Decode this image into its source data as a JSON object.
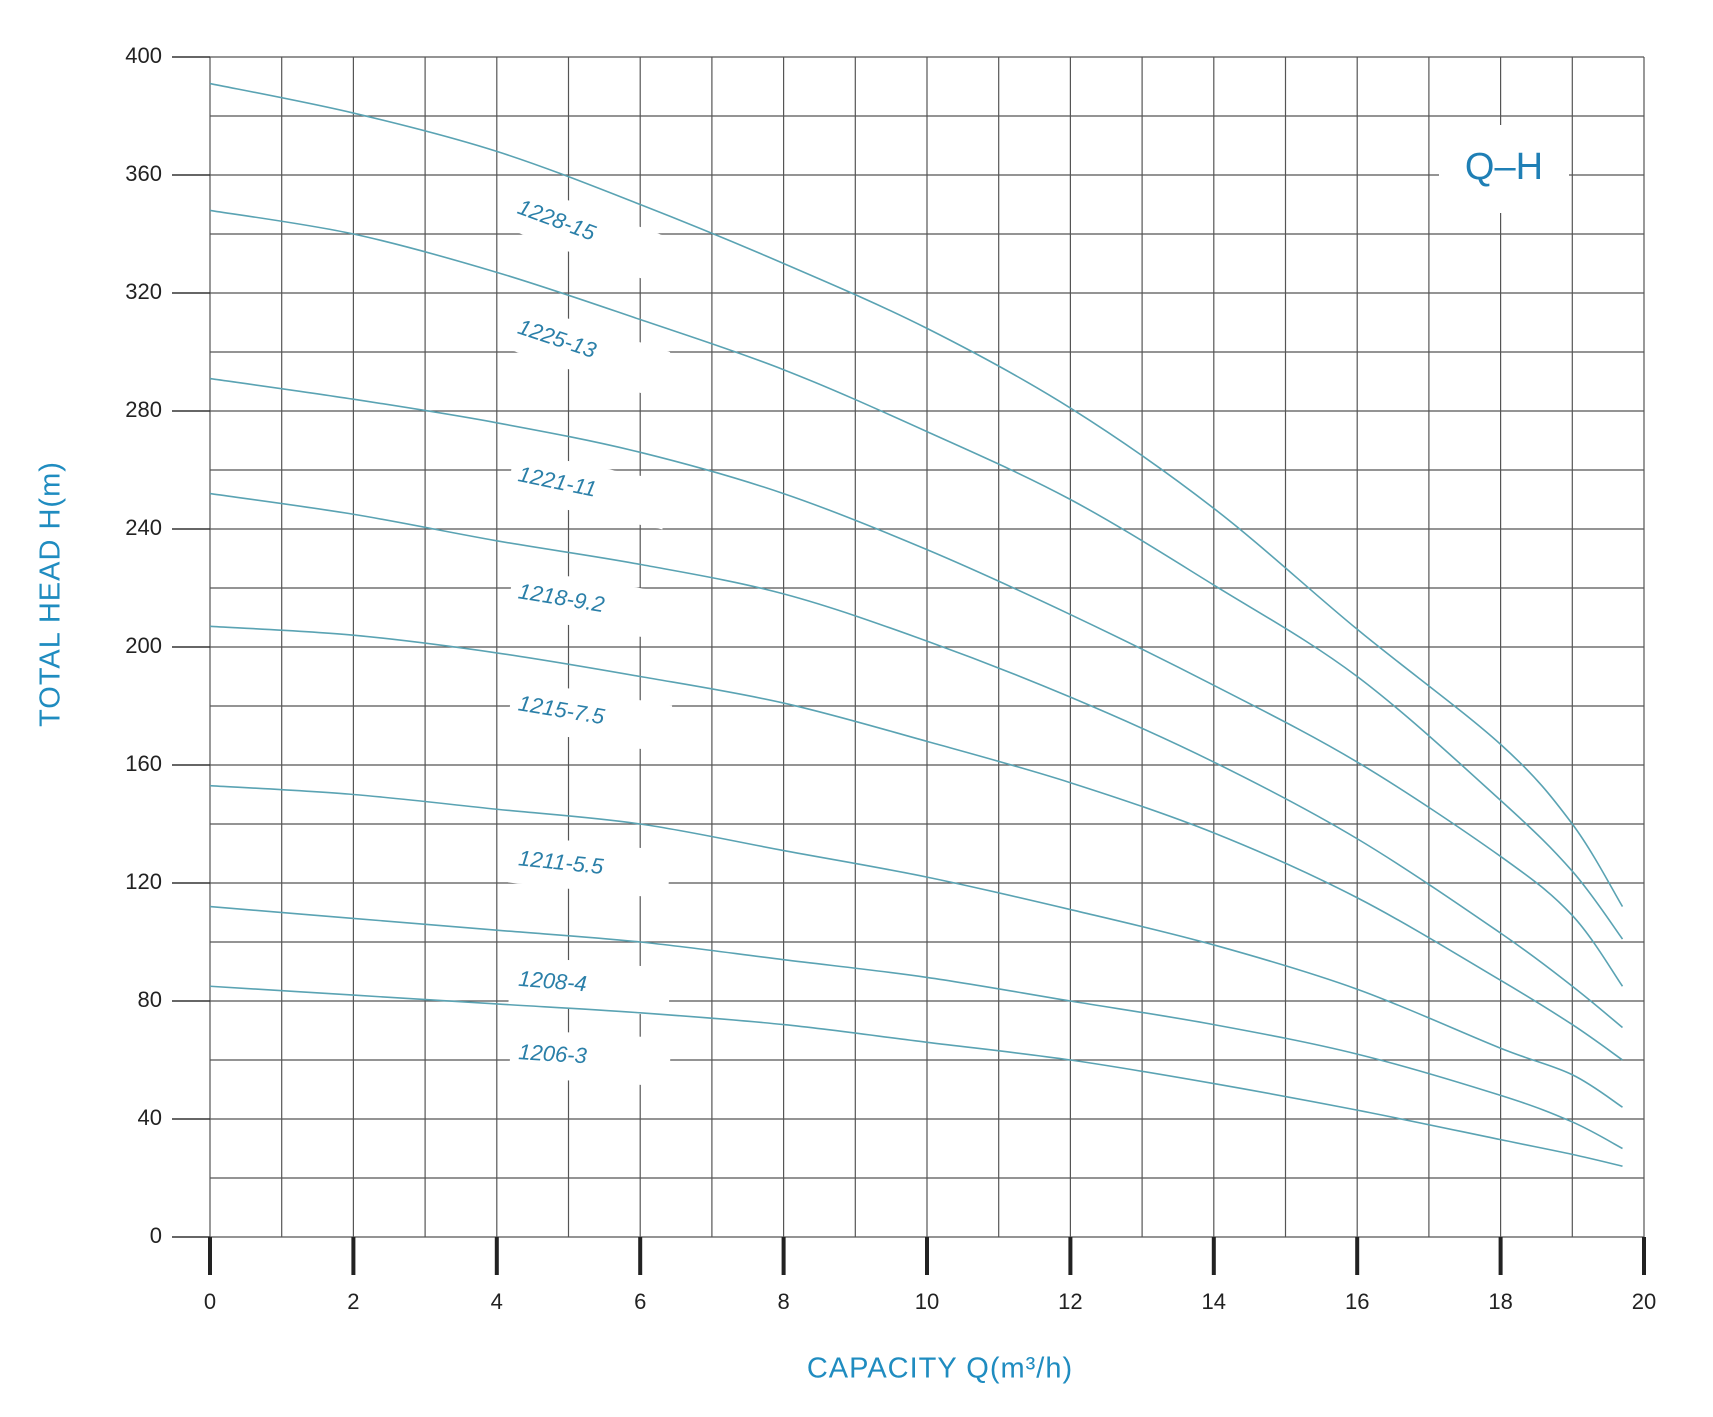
{
  "chart_data": {
    "type": "line",
    "title": "Q–H",
    "x_label": "CAPACITY Q(m³/h)",
    "y_label": "TOTAL HEAD H(m)",
    "x": [
      0,
      2,
      4,
      6,
      8,
      10,
      12,
      14,
      16,
      18,
      19,
      19.7
    ],
    "series": [
      {
        "name": "1228-15",
        "color": "#5aa3b3",
        "values": [
          391,
          381,
          368,
          350,
          330,
          308,
          281,
          247,
          206,
          167,
          140,
          112
        ]
      },
      {
        "name": "1225-13",
        "color": "#5aa3b3",
        "values": [
          348,
          340,
          327,
          311,
          294,
          273,
          250,
          221,
          190,
          148,
          124,
          101
        ]
      },
      {
        "name": "1221-11",
        "color": "#5aa3b3",
        "values": [
          291,
          284,
          276,
          266,
          252,
          233,
          211,
          187,
          161,
          129,
          109,
          85
        ]
      },
      {
        "name": "1218-9.2",
        "color": "#5aa3b3",
        "values": [
          252,
          245,
          236,
          228,
          218,
          202,
          183,
          161,
          135,
          103,
          85,
          71
        ]
      },
      {
        "name": "1215-7.5",
        "color": "#5aa3b3",
        "values": [
          207,
          204,
          198,
          190,
          181,
          168,
          154,
          137,
          115,
          87,
          72,
          60
        ]
      },
      {
        "name": "1211-5.5",
        "color": "#5aa3b3",
        "values": [
          153,
          150,
          145,
          140,
          131,
          122,
          111,
          99,
          84,
          64,
          55,
          44
        ]
      },
      {
        "name": "1208-4",
        "color": "#5aa3b3",
        "values": [
          112,
          108,
          104,
          100,
          94,
          88,
          80,
          72,
          62,
          48,
          39,
          30
        ]
      },
      {
        "name": "1206-3",
        "color": "#5aa3b3",
        "values": [
          85,
          82,
          79,
          76,
          72,
          66,
          60,
          52,
          43,
          33,
          28,
          24
        ]
      }
    ],
    "xlim": [
      0,
      20
    ],
    "xticks": [
      0,
      2,
      4,
      6,
      8,
      10,
      12,
      14,
      16,
      18,
      20
    ],
    "ylim": [
      0,
      400
    ],
    "yticks": [
      0,
      40,
      80,
      120,
      160,
      200,
      240,
      280,
      320,
      360,
      400
    ],
    "grid": true
  }
}
